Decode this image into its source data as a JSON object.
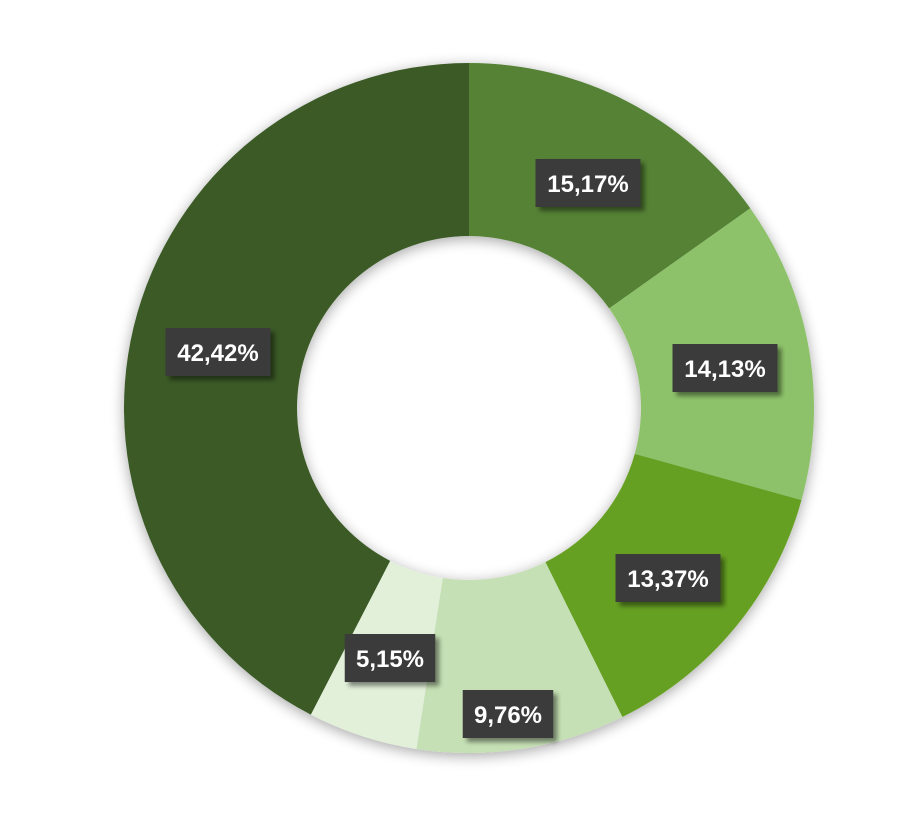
{
  "chart_data": {
    "type": "pie",
    "donut": true,
    "title": "",
    "legend": "none",
    "slices": [
      {
        "label": "15,17%",
        "value": 15.17,
        "color": "#548235"
      },
      {
        "label": "14,13%",
        "value": 14.13,
        "color": "#8dc26a"
      },
      {
        "label": "13,37%",
        "value": 13.37,
        "color": "#66a020"
      },
      {
        "label": "9,76%",
        "value": 9.76,
        "color": "#c5e0b4"
      },
      {
        "label": "5,15%",
        "value": 5.15,
        "color": "#e2f0d9"
      },
      {
        "label": "42,42%",
        "value": 42.42,
        "color": "#3a5a25"
      }
    ]
  }
}
